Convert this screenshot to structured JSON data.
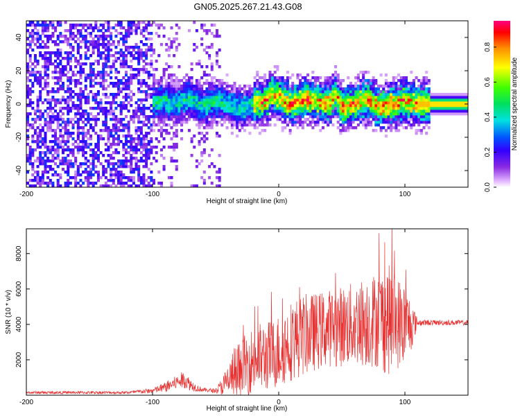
{
  "figure_title": "GN05.2025.267.21.43.G08",
  "chart_data": [
    {
      "type": "heatmap",
      "title": "GN05.2025.267.21.43.G08",
      "xlabel": "Height of straight line (km)",
      "ylabel": "Frequency (Hz)",
      "xlim": [
        -200,
        150
      ],
      "ylim": [
        -50,
        50
      ],
      "x_ticks": [
        "-200",
        "-100",
        "0",
        "100"
      ],
      "x_tick_values": [
        -200,
        -100,
        0,
        100
      ],
      "y_ticks": [
        "-40",
        "-20",
        "0",
        "20",
        "40"
      ],
      "y_tick_values": [
        -40,
        -20,
        0,
        20,
        40
      ],
      "colorbar": {
        "label": "Normalized spectral amplitude",
        "range": [
          0,
          0.95
        ],
        "ticks": [
          "0.0",
          "0.2",
          "0.4",
          "0.6",
          "0.8"
        ],
        "tick_values": [
          0.0,
          0.2,
          0.4,
          0.6,
          0.8
        ]
      },
      "ridge_x": [
        -100,
        -90,
        -80,
        -70,
        -60,
        -50,
        -40,
        -30,
        -20,
        -10,
        -5,
        0,
        5,
        10,
        20,
        30,
        40,
        45,
        50,
        60,
        70,
        80,
        90,
        100,
        110,
        120,
        150
      ],
      "ridge_freq": [
        0,
        2,
        0,
        4,
        -2,
        2,
        0,
        -3,
        0,
        2,
        6,
        4,
        2,
        0,
        3,
        2,
        0,
        6,
        -2,
        0,
        3,
        -2,
        0,
        2,
        0,
        0,
        0
      ],
      "noise_region_km": [
        -200,
        -45
      ],
      "peak_region_km": [
        -20,
        110
      ]
    },
    {
      "type": "line",
      "xlabel": "Height of straight line (km)",
      "ylabel": "SNR (10 * v/v)",
      "xlim": [
        -200,
        150
      ],
      "ylim": [
        0,
        9400
      ],
      "x_ticks": [
        "-200",
        "-100",
        "0",
        "100"
      ],
      "x_tick_values": [
        -200,
        -100,
        0,
        100
      ],
      "y_ticks": [
        "2000",
        "4000",
        "6000",
        "8000"
      ],
      "y_tick_values": [
        2000,
        4000,
        6000,
        8000
      ],
      "series_color": "#e83030",
      "envelope_x": [
        -200,
        -120,
        -100,
        -90,
        -80,
        -75,
        -70,
        -65,
        -60,
        -50,
        -45,
        -40,
        -35,
        -30,
        -25,
        -20,
        -15,
        -10,
        -5,
        0,
        5,
        10,
        20,
        30,
        40,
        50,
        60,
        70,
        80,
        85,
        90,
        95,
        100,
        105,
        110,
        120,
        150
      ],
      "envelope_mean": [
        150,
        150,
        250,
        450,
        750,
        900,
        600,
        400,
        300,
        250,
        500,
        800,
        1300,
        1500,
        1800,
        2000,
        2100,
        2200,
        2300,
        2500,
        2800,
        3100,
        3400,
        3600,
        3800,
        3900,
        4000,
        4200,
        4300,
        4300,
        4200,
        4100,
        4000,
        4000,
        4100,
        4100,
        4100
      ],
      "envelope_spread": [
        80,
        80,
        150,
        300,
        400,
        500,
        350,
        200,
        120,
        120,
        500,
        1000,
        1500,
        1600,
        1800,
        1900,
        2000,
        2000,
        2000,
        2100,
        2200,
        2300,
        2300,
        2200,
        2200,
        2300,
        2400,
        2600,
        2800,
        3200,
        3000,
        2600,
        2400,
        1500,
        200,
        150,
        150
      ]
    }
  ]
}
